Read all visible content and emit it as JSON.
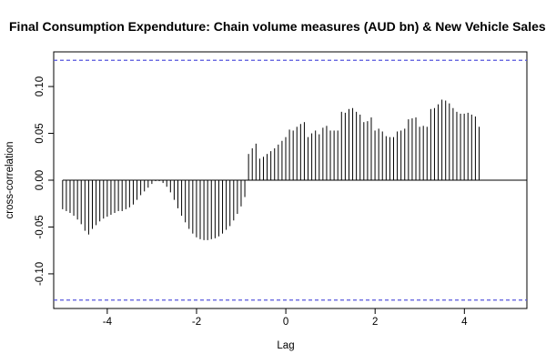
{
  "chart_data": {
    "type": "bar",
    "title": "Final Consumption Expenduture: Chain volume measures (AUD bn) & New Vehicle Sales",
    "xlabel": "Lag",
    "ylabel": "cross-correlation",
    "xlim": [
      -5.2,
      5.4
    ],
    "ylim": [
      -0.137,
      0.137
    ],
    "x_ticks": [
      -4,
      -2,
      0,
      2,
      4
    ],
    "x_tick_labels": [
      "-4",
      "-2",
      "0",
      "2",
      "4"
    ],
    "y_ticks": [
      -0.1,
      -0.05,
      0.0,
      0.05,
      0.1
    ],
    "y_tick_labels": [
      "-0.10",
      "-0.05",
      "0.00",
      "0.05",
      "0.10"
    ],
    "confidence_bounds": [
      0.128,
      -0.128
    ],
    "confidence_color": "#5555dd",
    "zero_line": 0,
    "grid": false,
    "lag_step": 0.0833,
    "lag_start": -5,
    "values": [
      -0.031,
      -0.033,
      -0.035,
      -0.038,
      -0.042,
      -0.047,
      -0.054,
      -0.058,
      -0.052,
      -0.048,
      -0.044,
      -0.041,
      -0.039,
      -0.037,
      -0.035,
      -0.033,
      -0.033,
      -0.031,
      -0.029,
      -0.026,
      -0.021,
      -0.016,
      -0.012,
      -0.008,
      -0.004,
      -0.001,
      -0.001,
      -0.003,
      -0.007,
      -0.013,
      -0.021,
      -0.03,
      -0.038,
      -0.045,
      -0.052,
      -0.057,
      -0.061,
      -0.063,
      -0.064,
      -0.064,
      -0.063,
      -0.062,
      -0.06,
      -0.057,
      -0.053,
      -0.049,
      -0.043,
      -0.036,
      -0.028,
      -0.018,
      0.028,
      0.034,
      0.039,
      0.023,
      0.025,
      0.028,
      0.031,
      0.034,
      0.038,
      0.042,
      0.046,
      0.054,
      0.053,
      0.057,
      0.06,
      0.062,
      0.046,
      0.05,
      0.053,
      0.049,
      0.056,
      0.058,
      0.053,
      0.053,
      0.053,
      0.073,
      0.072,
      0.076,
      0.077,
      0.073,
      0.07,
      0.062,
      0.063,
      0.067,
      0.053,
      0.055,
      0.052,
      0.047,
      0.046,
      0.046,
      0.052,
      0.053,
      0.055,
      0.065,
      0.066,
      0.067,
      0.057,
      0.058,
      0.057,
      0.076,
      0.077,
      0.081,
      0.086,
      0.085,
      0.082,
      0.077,
      0.073,
      0.071,
      0.071,
      0.072,
      0.07,
      0.068,
      0.057
    ]
  }
}
